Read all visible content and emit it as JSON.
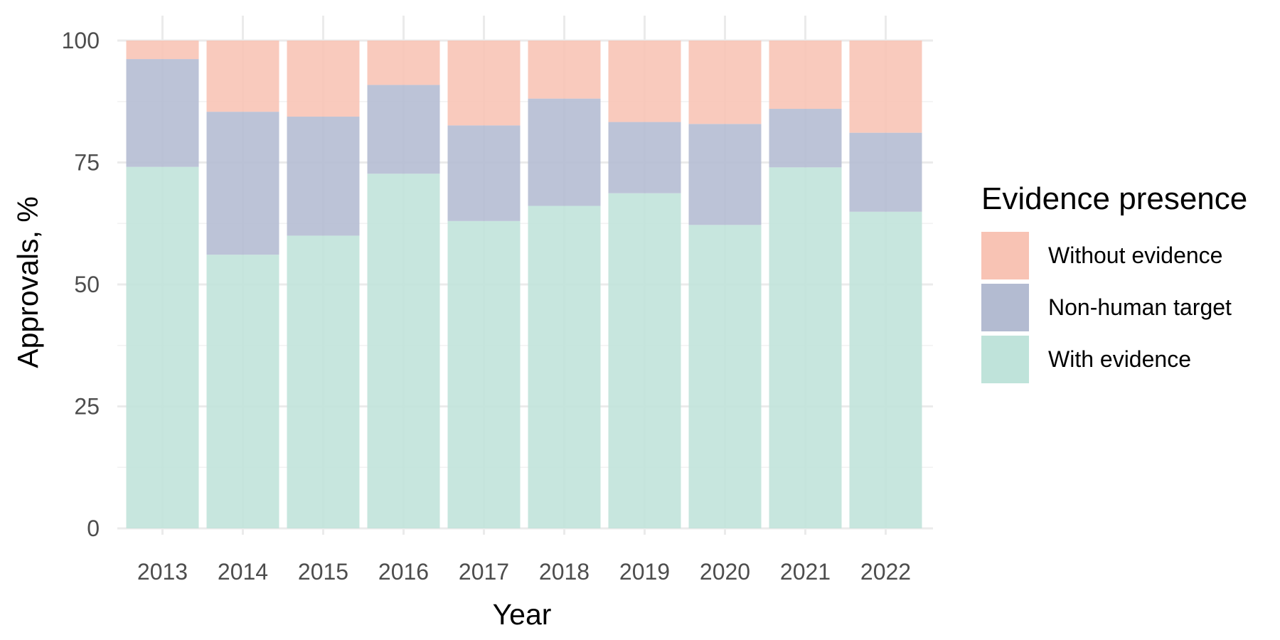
{
  "chart_data": {
    "type": "bar",
    "stacked": true,
    "categories": [
      "2013",
      "2014",
      "2015",
      "2016",
      "2017",
      "2018",
      "2019",
      "2020",
      "2021",
      "2022"
    ],
    "series": [
      {
        "key": "with",
        "name": "With evidence",
        "color": "#bfe3da",
        "values": [
          74.1,
          56.1,
          60.0,
          72.7,
          63.0,
          66.1,
          68.7,
          62.2,
          74.0,
          64.9
        ]
      },
      {
        "key": "nonhuman",
        "name": "Non-human target",
        "color": "#b3bbd1",
        "values": [
          22.1,
          29.3,
          24.4,
          18.2,
          19.6,
          22.0,
          14.6,
          20.7,
          12.0,
          16.2
        ]
      },
      {
        "key": "without",
        "name": "Without evidence",
        "color": "#f8c3b4",
        "values": [
          3.8,
          14.6,
          15.6,
          9.1,
          17.4,
          11.9,
          16.7,
          17.1,
          14.0,
          18.9
        ]
      }
    ],
    "title": "",
    "xlabel": "Year",
    "ylabel": "Approvals, %",
    "ylim": [
      0,
      100
    ],
    "yticks": [
      0,
      25,
      50,
      75,
      100
    ],
    "grid": true,
    "legend": {
      "title": "Evidence presence",
      "position": "right",
      "order": [
        "without",
        "nonhuman",
        "with"
      ]
    }
  }
}
